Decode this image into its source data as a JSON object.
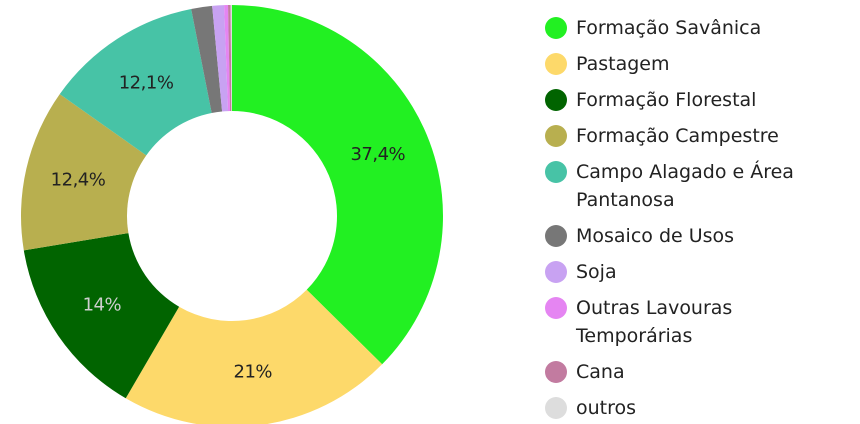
{
  "chart_data": {
    "type": "donut",
    "categories": [
      "Formação Savânica",
      "Pastagem",
      "Formação Florestal",
      "Formação Campestre",
      "Campo Alagado e Área Pantanosa",
      "Mosaico de Usos",
      "Soja",
      "Outras Lavouras Temporárias",
      "Cana",
      "outros"
    ],
    "values": [
      37.4,
      21,
      14,
      12.4,
      12.1,
      1.6,
      0.9,
      0.3,
      0.2,
      0.1
    ],
    "value_labels": [
      "37,4%",
      "21%",
      "14%",
      "12,4%",
      "12,1%",
      null,
      null,
      null,
      null,
      null
    ],
    "colors": [
      "#22f022",
      "#fdd96a",
      "#016400",
      "#b8af4f",
      "#47c3a6",
      "#777777",
      "#c8a2f2",
      "#e585f2",
      "#c27ba0",
      "#dddddd"
    ],
    "legend": "right"
  }
}
